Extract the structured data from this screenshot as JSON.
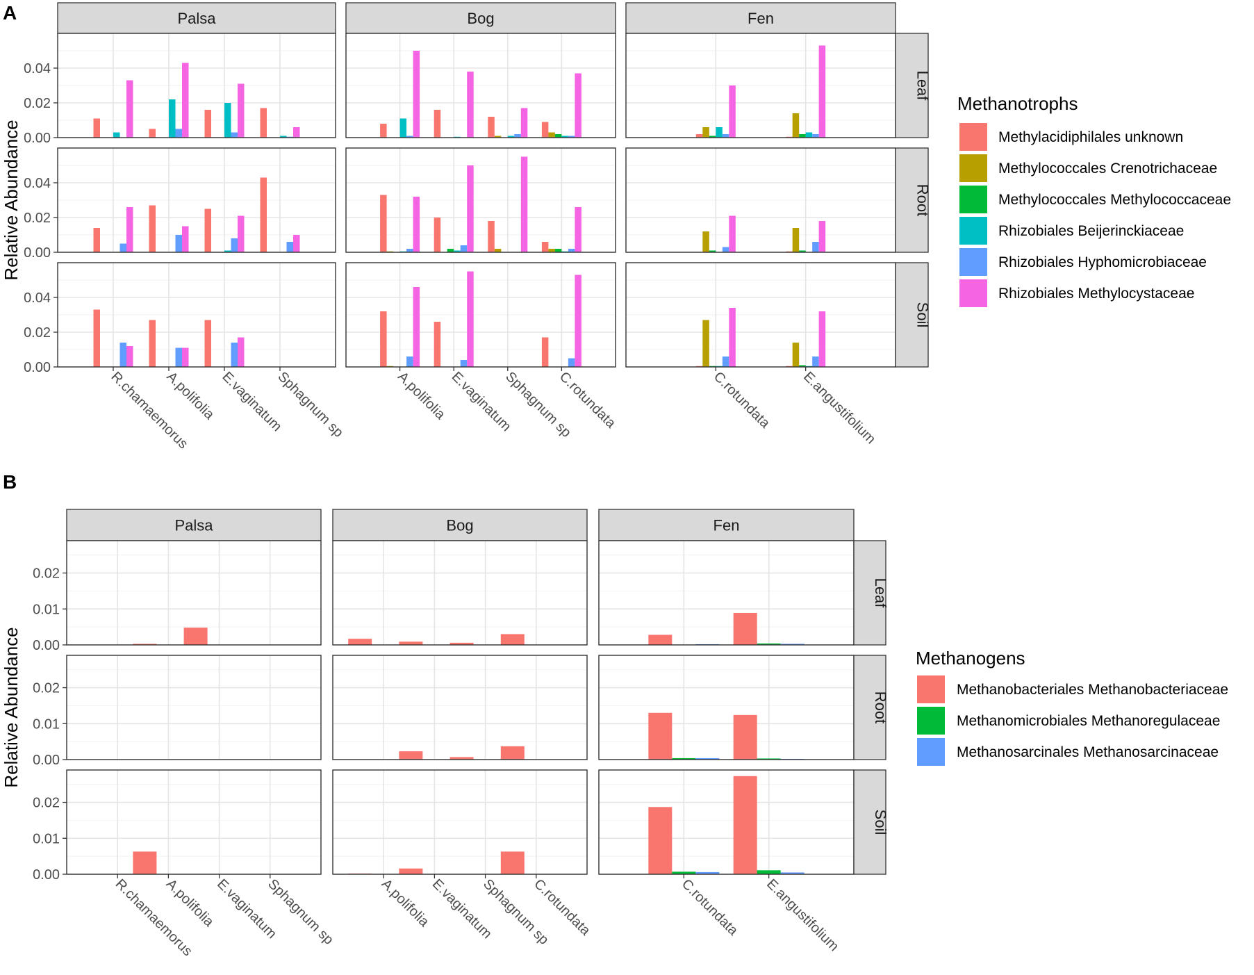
{
  "chart_data": [
    {
      "type": "bar",
      "panel_label": "A",
      "facet_cols": [
        "Palsa",
        "Bog",
        "Fen"
      ],
      "facet_rows": [
        "Leaf",
        "Root",
        "Soil"
      ],
      "categories": {
        "Palsa": [
          "R.chamaemorus",
          "A.polifolia",
          "E.vaginatum",
          "Sphagnum sp"
        ],
        "Bog": [
          "A.polifolia",
          "E.vaginatum",
          "Sphagnum sp",
          "C.rotundata"
        ],
        "Fen": [
          "C.rotundata",
          "E.angustifolium"
        ]
      },
      "ylabel": "Relative Abundance",
      "xlabel": "",
      "ylim": [
        0,
        0.06
      ],
      "yticks": [
        0,
        0.02,
        0.04
      ],
      "ytick_labels": [
        "0.00",
        "0.02",
        "0.04"
      ],
      "legend_title": "Methanotrophs",
      "series": [
        {
          "name": "Methylacidiphilales unknown",
          "color": "#F8766D"
        },
        {
          "name": "Methylococcales Crenotrichaceae",
          "color": "#B79F00"
        },
        {
          "name": "Methylococcales Methylococcaceae",
          "color": "#00BA38"
        },
        {
          "name": "Rhizobiales Beijerinckiaceae",
          "color": "#00BFC4"
        },
        {
          "name": "Rhizobiales Hyphomicrobiaceae",
          "color": "#619CFF"
        },
        {
          "name": "Rhizobiales Methylocystaceae",
          "color": "#F564E3"
        }
      ],
      "values": {
        "Palsa": {
          "Leaf": [
            [
              0.011,
              0,
              0,
              0.003,
              0,
              0.033
            ],
            [
              0.005,
              0,
              0,
              0.022,
              0.005,
              0.043
            ],
            [
              0.016,
              0,
              0,
              0.02,
              0.003,
              0.031
            ],
            [
              0.017,
              0,
              0,
              0.001,
              0.0005,
              0.006
            ]
          ],
          "Root": [
            [
              0.014,
              0,
              0,
              0,
              0.005,
              0.026
            ],
            [
              0.027,
              0,
              0,
              0,
              0.01,
              0.015
            ],
            [
              0.025,
              0,
              0,
              0.001,
              0.008,
              0.021
            ],
            [
              0.043,
              0,
              0,
              0,
              0.006,
              0.01
            ]
          ],
          "Soil": [
            [
              0.033,
              0,
              0,
              0,
              0.014,
              0.012
            ],
            [
              0.027,
              0,
              0,
              0,
              0.011,
              0.011
            ],
            [
              0.027,
              0,
              0,
              0,
              0.014,
              0.017
            ],
            [
              0,
              0,
              0,
              0,
              0,
              0
            ]
          ]
        },
        "Bog": {
          "Leaf": [
            [
              0.008,
              0,
              0,
              0.011,
              0.001,
              0.05
            ],
            [
              0.016,
              0,
              0,
              0.0005,
              0,
              0.038
            ],
            [
              0.012,
              0.001,
              0,
              0.001,
              0.002,
              0.017
            ],
            [
              0.009,
              0.003,
              0.002,
              0.001,
              0.001,
              0.037
            ]
          ],
          "Root": [
            [
              0.033,
              0.0005,
              0,
              0.0005,
              0.002,
              0.032
            ],
            [
              0.02,
              0,
              0.002,
              0.001,
              0.004,
              0.05
            ],
            [
              0.018,
              0.002,
              0,
              0,
              0,
              0.055
            ],
            [
              0.006,
              0.002,
              0.002,
              0.0005,
              0.002,
              0.026
            ]
          ],
          "Soil": [
            [
              0.032,
              0.0005,
              0,
              0,
              0.006,
              0.046
            ],
            [
              0.026,
              0,
              0,
              0,
              0.004,
              0.055
            ],
            [
              0,
              0,
              0,
              0,
              0,
              0
            ],
            [
              0.017,
              0,
              0,
              0,
              0.005,
              0.053
            ]
          ]
        },
        "Fen": {
          "Leaf": [
            [
              0.002,
              0.006,
              0.001,
              0.006,
              0.002,
              0.03
            ],
            [
              0.0005,
              0.014,
              0.002,
              0.003,
              0.002,
              0.053
            ]
          ],
          "Root": [
            [
              0,
              0.012,
              0.001,
              0,
              0.003,
              0.021
            ],
            [
              0.0005,
              0.014,
              0.001,
              0,
              0.006,
              0.018
            ]
          ],
          "Soil": [
            [
              0.0005,
              0.027,
              0.0005,
              0.0005,
              0.006,
              0.034
            ],
            [
              0.0005,
              0.014,
              0.001,
              0.0005,
              0.006,
              0.032
            ]
          ]
        }
      }
    },
    {
      "type": "bar",
      "panel_label": "B",
      "facet_cols": [
        "Palsa",
        "Bog",
        "Fen"
      ],
      "facet_rows": [
        "Leaf",
        "Root",
        "Soil"
      ],
      "categories": {
        "Palsa": [
          "R.chamaemorus",
          "A.polifolia",
          "E.vaginatum",
          "Sphagnum sp"
        ],
        "Bog": [
          "A.polifolia",
          "E.vaginatum",
          "Sphagnum sp",
          "C.rotundata"
        ],
        "Fen": [
          "C.rotundata",
          "E.angustifolium"
        ]
      },
      "ylabel": "Relative Abundance",
      "xlabel": "",
      "ylim": [
        0,
        0.029
      ],
      "yticks": [
        0,
        0.01,
        0.02
      ],
      "ytick_labels": [
        "0.00",
        "0.01",
        "0.02"
      ],
      "legend_title": "Methanogens",
      "series": [
        {
          "name": "Methanobacteriales Methanobacteriaceae",
          "color": "#F8766D"
        },
        {
          "name": "Methanomicrobiales Methanoregulaceae",
          "color": "#00BA38"
        },
        {
          "name": "Methanosarcinales Methanosarcinaceae",
          "color": "#619CFF"
        }
      ],
      "values": {
        "Palsa": {
          "Leaf": [
            [
              0,
              0,
              0
            ],
            [
              0.0003,
              0,
              0
            ],
            [
              0.0048,
              0,
              0
            ],
            [
              0,
              0,
              0
            ]
          ],
          "Root": [
            [
              0,
              0,
              0
            ],
            [
              0,
              0,
              0
            ],
            [
              0,
              0,
              0
            ],
            [
              0,
              0,
              0
            ]
          ],
          "Soil": [
            [
              0,
              0,
              0
            ],
            [
              0.0063,
              0,
              0
            ],
            [
              0,
              0,
              0
            ],
            [
              0,
              0,
              0
            ]
          ]
        },
        "Bog": {
          "Leaf": [
            [
              0.0017,
              0,
              0
            ],
            [
              0.0009,
              0,
              0
            ],
            [
              0.0006,
              0,
              0
            ],
            [
              0.003,
              0,
              0
            ]
          ],
          "Root": [
            [
              0,
              0,
              0
            ],
            [
              0.0023,
              0,
              0
            ],
            [
              0.0007,
              0,
              0
            ],
            [
              0.0037,
              0,
              0
            ]
          ],
          "Soil": [
            [
              0.0002,
              0,
              0
            ],
            [
              0.0016,
              0,
              0
            ],
            [
              0,
              0,
              0
            ],
            [
              0.0063,
              0,
              0
            ]
          ]
        },
        "Fen": {
          "Leaf": [
            [
              0.0028,
              0,
              0.0002
            ],
            [
              0.0089,
              0.0004,
              0.0003
            ]
          ],
          "Root": [
            [
              0.013,
              0.0004,
              0.0004
            ],
            [
              0.0124,
              0.0003,
              0.0002
            ]
          ],
          "Soil": [
            [
              0.0187,
              0.0007,
              0.0006
            ],
            [
              0.0273,
              0.0011,
              0.0005
            ]
          ]
        }
      }
    }
  ]
}
